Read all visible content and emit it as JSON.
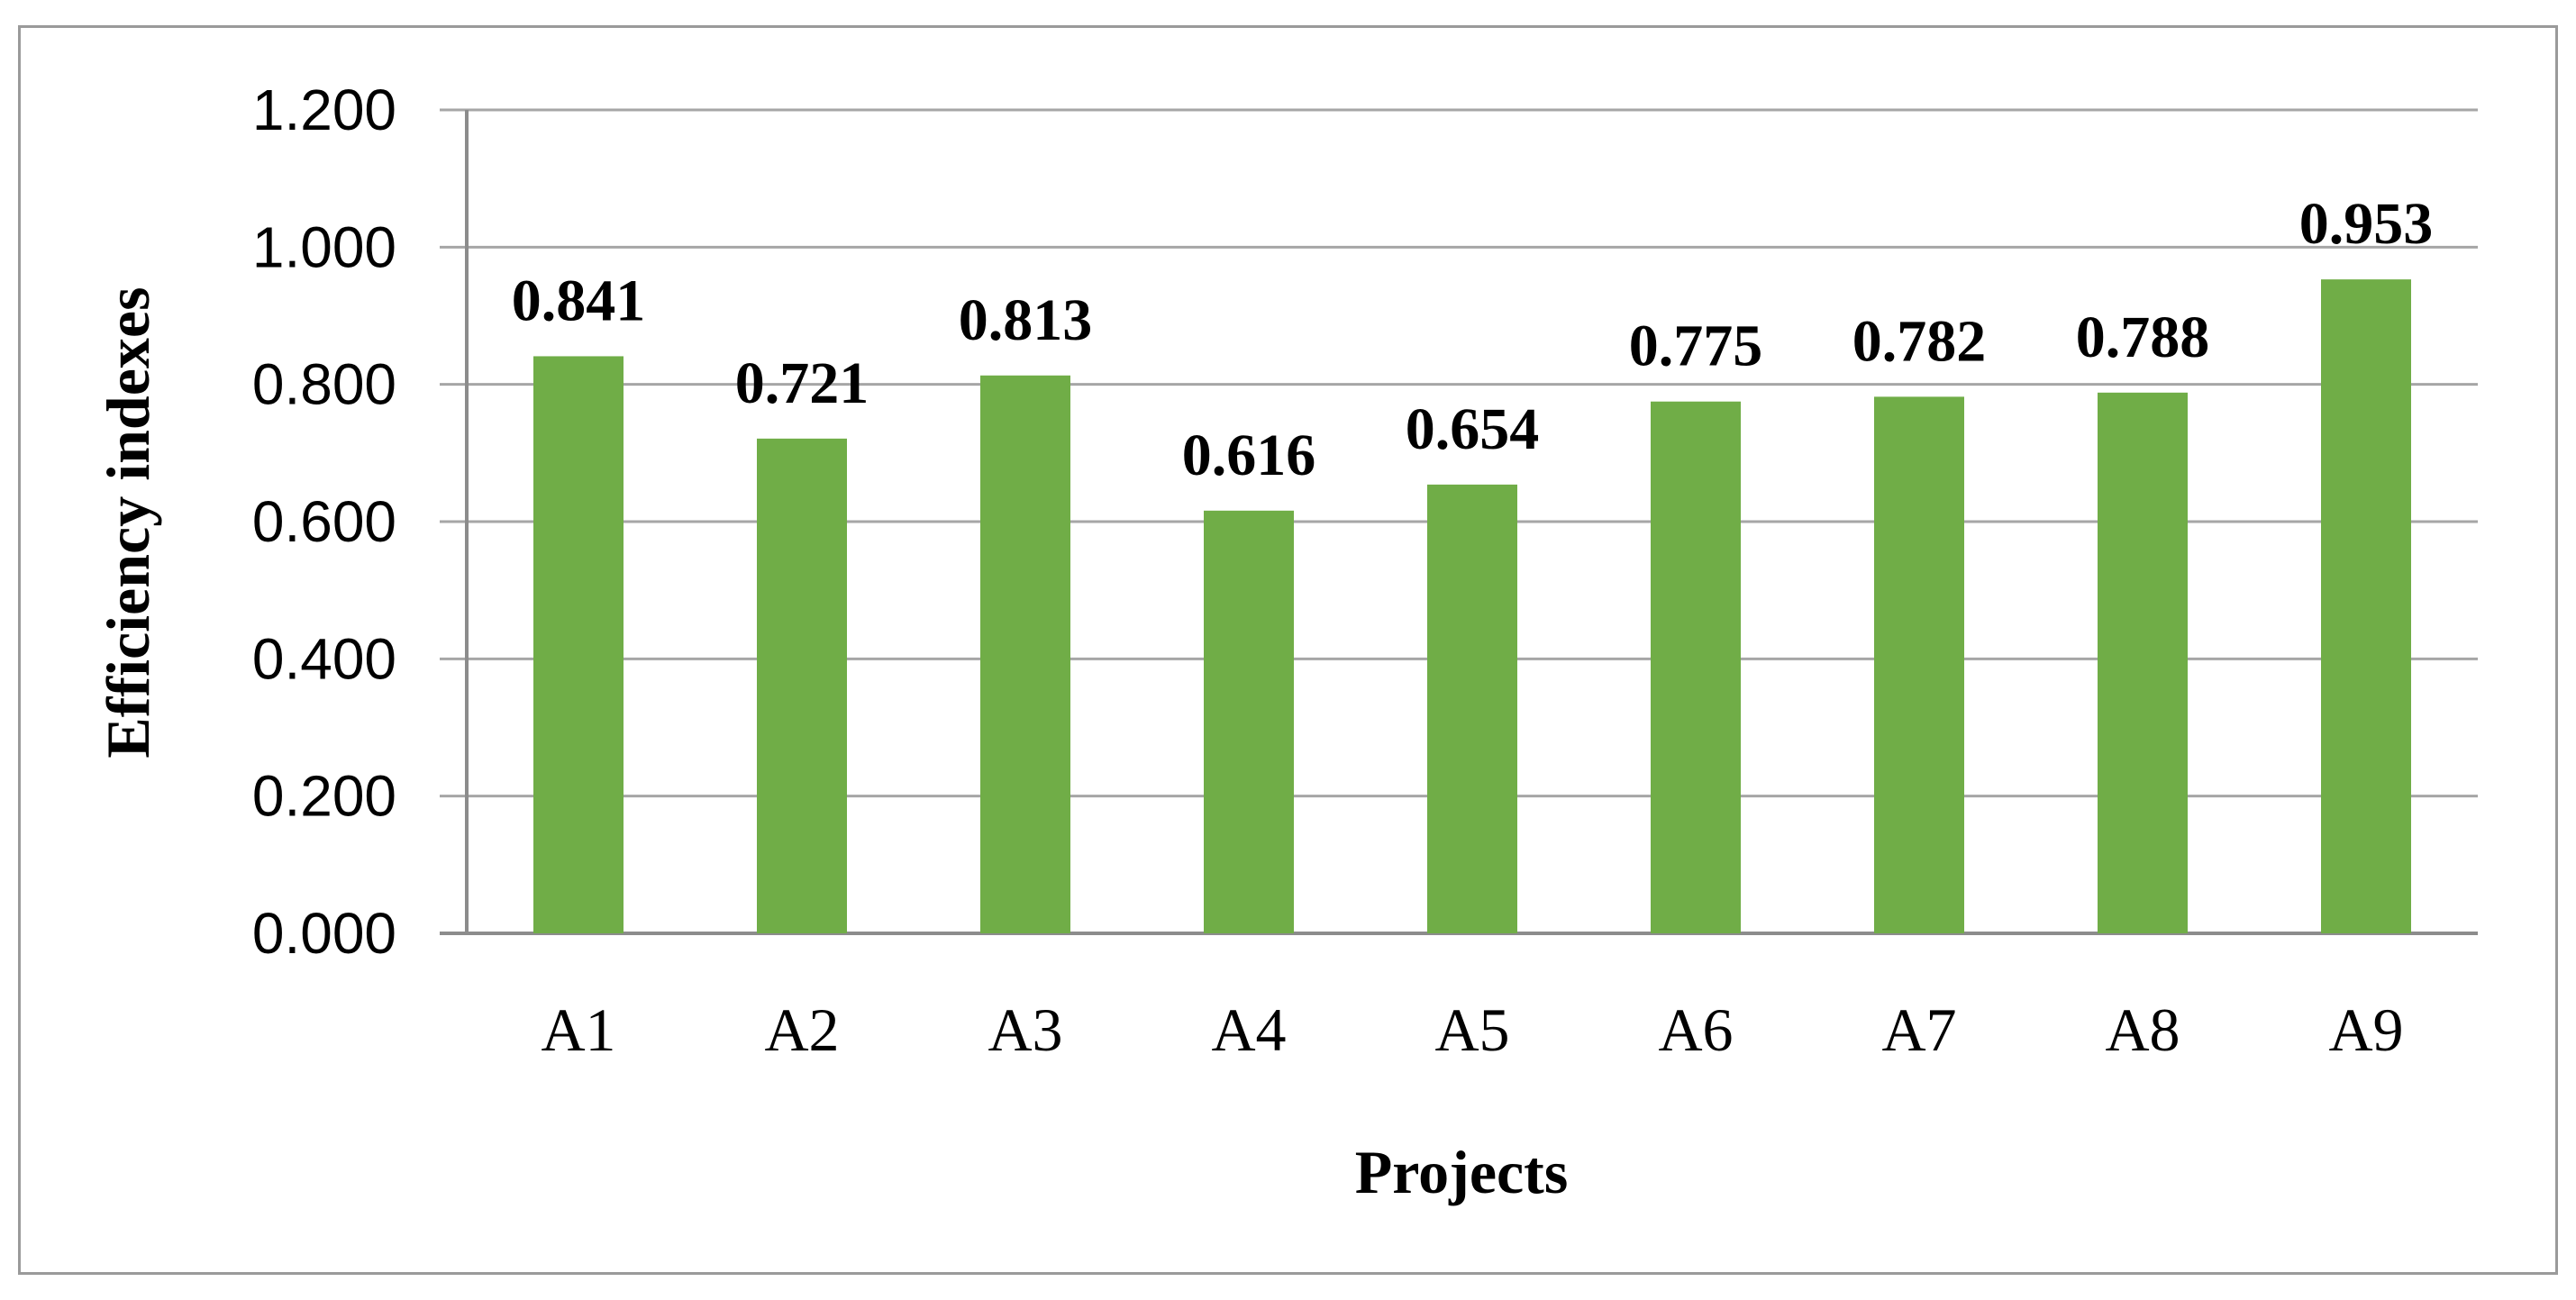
{
  "chart_data": {
    "type": "bar",
    "title": "",
    "xlabel": "Projects",
    "ylabel": "Efficiency indexes",
    "categories": [
      "A1",
      "A2",
      "A3",
      "A4",
      "A5",
      "A6",
      "A7",
      "A8",
      "A9"
    ],
    "values": [
      0.841,
      0.721,
      0.813,
      0.616,
      0.654,
      0.775,
      0.782,
      0.788,
      0.953
    ],
    "data_labels": [
      "0.841",
      "0.721",
      "0.813",
      "0.616",
      "0.654",
      "0.775",
      "0.782",
      "0.788",
      "0.953"
    ],
    "ylim": [
      0,
      1.2
    ],
    "yticks": [
      0,
      0.2,
      0.4,
      0.6,
      0.8,
      1.0,
      1.2
    ],
    "ytick_labels": [
      "0.000",
      "0.200",
      "0.400",
      "0.600",
      "0.800",
      "1.000",
      "1.200"
    ],
    "grid": true,
    "legend": "none",
    "colors": {
      "bar": "#70AD47",
      "grid": "#a6a6a6",
      "axis": "#8c8c8c",
      "frame": "#9a9a9a"
    }
  }
}
